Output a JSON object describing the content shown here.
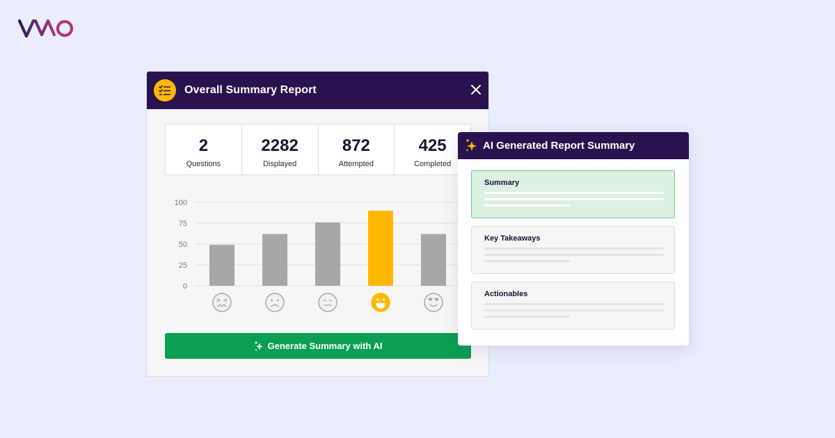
{
  "brand": {
    "logo_icon": "vwo-logo",
    "colors": {
      "navy": "#28134f",
      "yellow": "#ffb800",
      "green": "#0b9f52",
      "gray_bar": "#a7a7a9",
      "background": "#e9edfc"
    }
  },
  "report": {
    "title": "Overall Summary Report",
    "header_icon": "checklist-icon",
    "close_icon": "close-icon",
    "stats": [
      {
        "value": "2",
        "label": "Questions"
      },
      {
        "value": "2282",
        "label": "Displayed"
      },
      {
        "value": "872",
        "label": "Attempted"
      },
      {
        "value": "425",
        "label": "Completed"
      }
    ],
    "generate_button": {
      "label": "Generate Summary with AI",
      "icon": "sparkle-icon"
    }
  },
  "chart_data": {
    "type": "bar",
    "categories": [
      "confounded-face",
      "frowning-face",
      "neutral-face",
      "grinning-face",
      "heart-eyes-face"
    ],
    "values": [
      49,
      62,
      76,
      90,
      62
    ],
    "highlight_index": 3,
    "yticks": [
      "0",
      "25",
      "50",
      "75",
      "100"
    ],
    "ylim": [
      0,
      100
    ],
    "grid": true,
    "xlabel": "",
    "ylabel": ""
  },
  "ai_summary": {
    "title": "AI Generated Report Summary",
    "header_icon": "sparkle-icon",
    "sections": [
      {
        "title": "Summary",
        "active": true
      },
      {
        "title": "Key Takeaways",
        "active": false
      },
      {
        "title": "Actionables",
        "active": false
      }
    ]
  }
}
